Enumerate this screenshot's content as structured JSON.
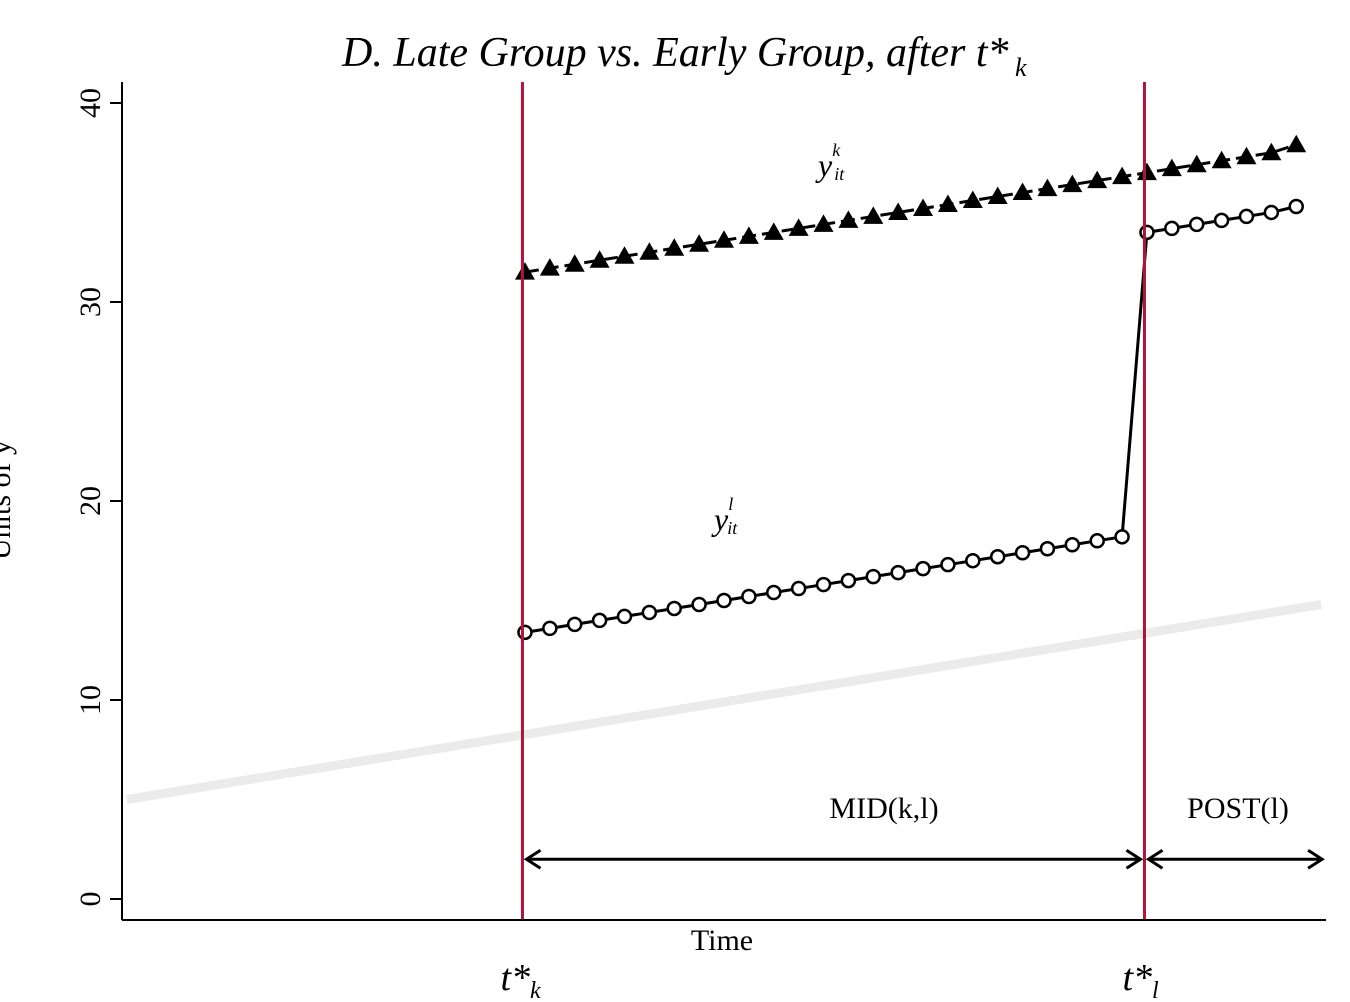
{
  "chart_data": {
    "type": "line",
    "title": "D. Late Group vs. Early Group, after t*",
    "title_subscript": "k",
    "xlabel": "Time",
    "ylabel": "Units of y",
    "ylim": [
      0,
      40
    ],
    "yticks": [
      "0",
      "10",
      "20",
      "30",
      "40"
    ],
    "xlim": [
      0,
      50
    ],
    "grid": false,
    "legend": "none",
    "series": [
      {
        "marker": "triangle",
        "label_base": "y",
        "label_sup": "k",
        "label_sub": "it",
        "x": [
          17,
          18,
          19,
          20,
          21,
          22,
          23,
          24,
          25,
          26,
          27,
          28,
          29,
          30,
          31,
          32,
          33,
          34,
          35,
          36,
          37,
          38,
          39,
          40,
          41,
          42,
          43,
          44,
          45,
          46,
          47,
          48
        ],
        "values": [
          31.5,
          31.7,
          31.9,
          32.1,
          32.3,
          32.5,
          32.7,
          32.9,
          33.1,
          33.3,
          33.5,
          33.7,
          33.9,
          34.1,
          34.3,
          34.5,
          34.7,
          34.9,
          35.1,
          35.3,
          35.5,
          35.7,
          35.9,
          36.1,
          36.3,
          36.5,
          36.7,
          36.9,
          37.1,
          37.3,
          37.5,
          37.9
        ]
      },
      {
        "marker": "circle",
        "label_base": "y",
        "label_sup": "l",
        "label_sub": "it",
        "x": [
          17,
          18,
          19,
          20,
          21,
          22,
          23,
          24,
          25,
          26,
          27,
          28,
          29,
          30,
          31,
          32,
          33,
          34,
          35,
          36,
          37,
          38,
          39,
          40,
          41,
          42,
          43,
          44,
          45,
          46,
          47,
          48
        ],
        "values": [
          13.4,
          13.6,
          13.8,
          14.0,
          14.2,
          14.4,
          14.6,
          14.8,
          15.0,
          15.2,
          15.4,
          15.6,
          15.8,
          16.0,
          16.2,
          16.4,
          16.6,
          16.8,
          17.0,
          17.2,
          17.4,
          17.6,
          17.8,
          18.0,
          18.2,
          33.5,
          33.7,
          33.9,
          34.1,
          34.3,
          34.5,
          34.8
        ]
      },
      {
        "style": "thick-light-gray",
        "x": [
          1,
          49
        ],
        "values": [
          5.0,
          14.8
        ]
      }
    ],
    "vlines": [
      {
        "x": 16.9,
        "label": "t*",
        "label_sub": "k",
        "color": "#b0143c"
      },
      {
        "x": 41.9,
        "label": "t*",
        "label_sub": "l",
        "color": "#b0143c"
      }
    ],
    "spans": [
      {
        "label": "MID(k,l)",
        "from": 16.9,
        "to": 41.9,
        "y": 2.0
      },
      {
        "label": "POST(l)",
        "from": 41.9,
        "to": 49.2,
        "y": 2.0
      }
    ]
  }
}
